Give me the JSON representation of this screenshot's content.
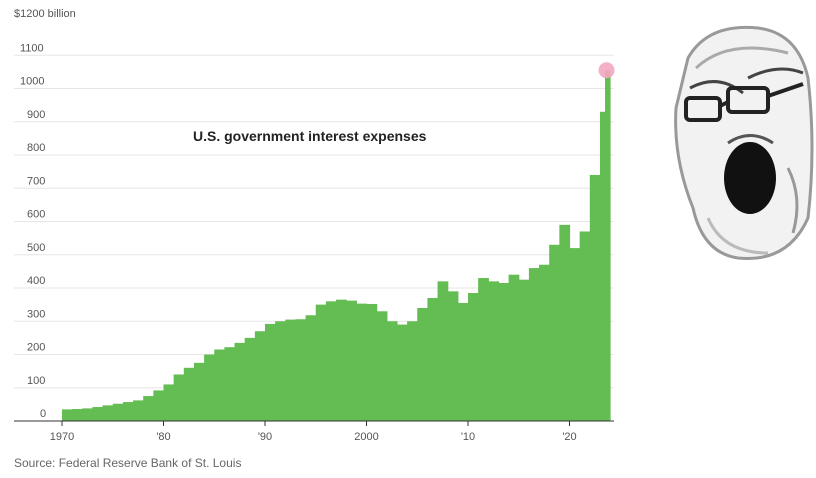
{
  "chart_data": {
    "type": "bar",
    "title": "U.S. government interest expenses",
    "y_unit_label": "$1200 billion",
    "ylim": [
      0,
      1200
    ],
    "y_ticks": [
      "0",
      "100",
      "200",
      "300",
      "400",
      "500",
      "600",
      "700",
      "800",
      "900",
      "1000",
      "1100"
    ],
    "x_ticks": [
      {
        "year": 1970,
        "label": "1970"
      },
      {
        "year": 1980,
        "label": "'80"
      },
      {
        "year": 1990,
        "label": "'90"
      },
      {
        "year": 2000,
        "label": "2000"
      },
      {
        "year": 2010,
        "label": "'10"
      },
      {
        "year": 2020,
        "label": "'20"
      }
    ],
    "xlim": [
      1968.75,
      2023.5
    ],
    "bar_color": "#63bd52",
    "highlight_color": "#f4a6c0",
    "grid": true,
    "series": [
      {
        "x": [
          1970,
          1971,
          1972,
          1973,
          1974,
          1975,
          1976,
          1977,
          1978,
          1979,
          1980,
          1981,
          1982,
          1983,
          1984,
          1985,
          1986,
          1987,
          1988,
          1989,
          1990,
          1991,
          1992,
          1993,
          1994,
          1995,
          1996,
          1997,
          1998,
          1999,
          2000,
          2001,
          2002,
          2003,
          2004,
          2005,
          2006,
          2007,
          2008,
          2009,
          2010,
          2011,
          2012,
          2013,
          2014,
          2015,
          2016,
          2017,
          2018,
          2019,
          2020,
          2021,
          2022,
          2023,
          2023.5
        ],
        "values": [
          35,
          36,
          38,
          42,
          47,
          52,
          57,
          62,
          75,
          92,
          110,
          140,
          160,
          175,
          200,
          215,
          222,
          235,
          250,
          270,
          292,
          300,
          305,
          306,
          318,
          350,
          360,
          365,
          362,
          353,
          352,
          330,
          300,
          290,
          300,
          340,
          370,
          420,
          390,
          355,
          385,
          430,
          420,
          415,
          440,
          425,
          460,
          470,
          530,
          590,
          520,
          570,
          740,
          930,
          1055
        ]
      }
    ],
    "highlight_value": 1055,
    "source": "Source: Federal Reserve Bank of St. Louis"
  }
}
